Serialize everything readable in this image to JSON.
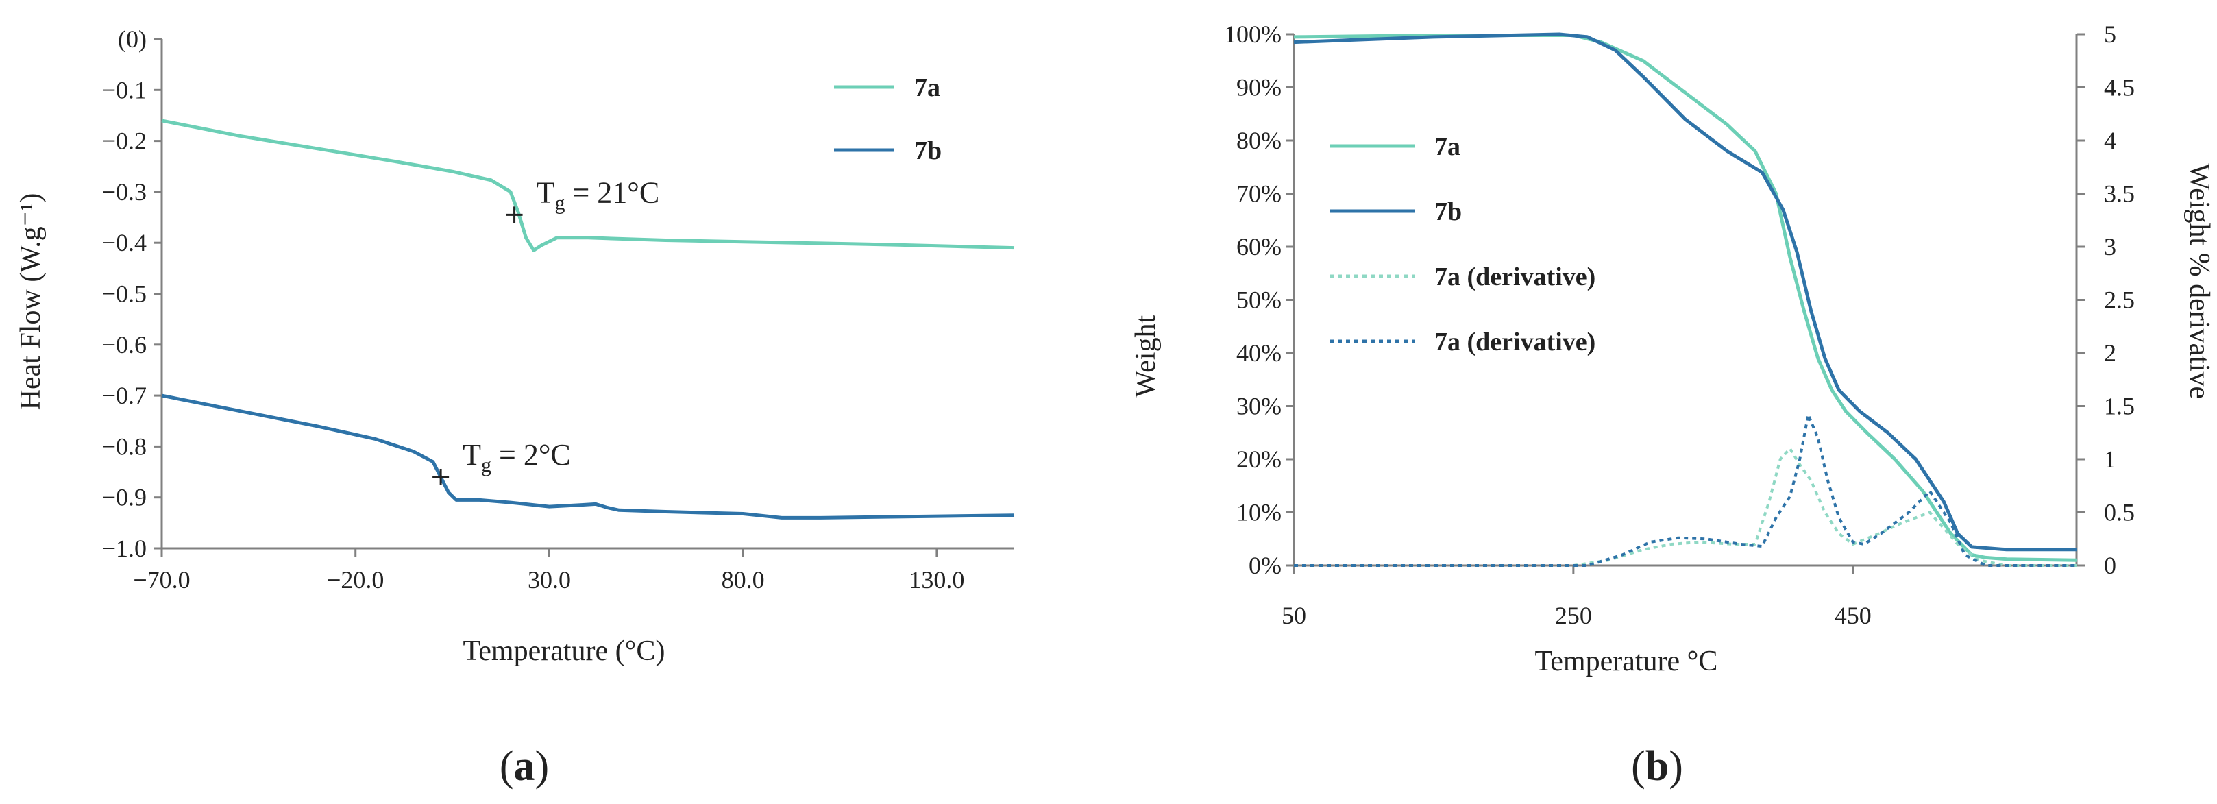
{
  "panels": [
    {
      "label_open": "(",
      "label_letter": "a",
      "label_close": ")"
    },
    {
      "label_open": "(",
      "label_letter": "b",
      "label_close": ")"
    }
  ],
  "chart_data": [
    {
      "type": "line",
      "xlabel": "Temperature (°C)",
      "ylabel": "Heat Flow (W.g⁻¹)",
      "xlim": [
        -70,
        150
      ],
      "ylim": [
        -1.0,
        0
      ],
      "xticks": [
        -70,
        -20,
        30,
        80,
        130
      ],
      "xtick_labels": [
        "−70.0",
        "−20.0",
        "30.0",
        "80.0",
        "130.0"
      ],
      "yticks": [
        0,
        -0.1,
        -0.2,
        -0.3,
        -0.4,
        -0.5,
        -0.6,
        -0.7,
        -0.8,
        -0.9,
        -1.0
      ],
      "ytick_labels": [
        "(0)",
        "−0.1",
        "−0.2",
        "−0.3",
        "−0.4",
        "−0.5",
        "−0.6",
        "−0.7",
        "−0.8",
        "−0.9",
        "−1.0"
      ],
      "grid": false,
      "legend_position": "top-right",
      "series": [
        {
          "name": "7a",
          "color": "#6ccfb6",
          "x": [
            -70,
            -50,
            -30,
            -10,
            5,
            15,
            20,
            22,
            24,
            26,
            28,
            32,
            40,
            60,
            80,
            100,
            120,
            150
          ],
          "y": [
            -0.16,
            -0.19,
            -0.215,
            -0.24,
            -0.26,
            -0.277,
            -0.3,
            -0.34,
            -0.39,
            -0.415,
            -0.405,
            -0.39,
            -0.39,
            -0.395,
            -0.398,
            -0.401,
            -0.404,
            -0.41
          ]
        },
        {
          "name": "7b",
          "color": "#2e73a8",
          "x": [
            -70,
            -50,
            -30,
            -15,
            -5,
            0,
            2,
            4,
            6,
            8,
            12,
            20,
            30,
            38,
            42,
            45,
            48,
            60,
            80,
            90,
            100,
            120,
            150
          ],
          "y": [
            -0.7,
            -0.73,
            -0.76,
            -0.785,
            -0.81,
            -0.83,
            -0.86,
            -0.89,
            -0.905,
            -0.905,
            -0.905,
            -0.91,
            -0.918,
            -0.915,
            -0.913,
            -0.92,
            -0.925,
            -0.928,
            -0.932,
            -0.94,
            -0.94,
            -0.938,
            -0.935
          ]
        }
      ],
      "annotations": [
        {
          "text_main": "T",
          "text_sub": "g",
          "text_rest": " = 21°C",
          "x": 21,
          "y": -0.345
        },
        {
          "text_main": "T",
          "text_sub": "g",
          "text_rest": " = 2°C",
          "x": 2,
          "y": -0.86
        }
      ]
    },
    {
      "type": "line",
      "xlabel": "Temperature °C",
      "ylabel": "Weight",
      "y2label": "Weight % derivative",
      "xlim": [
        50,
        610
      ],
      "ylim": [
        0,
        100
      ],
      "y2lim": [
        0,
        5
      ],
      "xticks": [
        50,
        250,
        450
      ],
      "xtick_labels": [
        "50",
        "250",
        "450"
      ],
      "yticks": [
        0,
        10,
        20,
        30,
        40,
        50,
        60,
        70,
        80,
        90,
        100
      ],
      "ytick_labels": [
        "0%",
        "10%",
        "20%",
        "30%",
        "40%",
        "50%",
        "60%",
        "70%",
        "80%",
        "90%",
        "100%"
      ],
      "y2ticks": [
        0,
        0.5,
        1,
        1.5,
        2,
        2.5,
        3,
        3.5,
        4,
        4.5,
        5
      ],
      "y2tick_labels": [
        "0",
        "0.5",
        "1",
        "1.5",
        "2",
        "2.5",
        "3",
        "3.5",
        "4",
        "4.5",
        "5"
      ],
      "grid": false,
      "legend_position": "left",
      "series": [
        {
          "name": "7a",
          "axis": "left",
          "style": "solid",
          "color": "#6ccfb6",
          "x": [
            50,
            150,
            250,
            270,
            300,
            330,
            360,
            380,
            395,
            405,
            415,
            425,
            435,
            445,
            460,
            480,
            500,
            520,
            535,
            545,
            560,
            610
          ],
          "y": [
            99.5,
            99.8,
            99.8,
            98.5,
            95,
            89,
            83,
            78,
            70,
            58,
            48,
            39,
            33,
            29,
            25,
            20,
            14,
            6,
            2,
            1.5,
            1.2,
            1
          ]
        },
        {
          "name": "7b",
          "axis": "left",
          "style": "solid",
          "color": "#2e73a8",
          "x": [
            50,
            150,
            240,
            260,
            280,
            300,
            330,
            360,
            385,
            400,
            410,
            420,
            430,
            440,
            455,
            475,
            495,
            515,
            525,
            535,
            560,
            610
          ],
          "y": [
            98.5,
            99.5,
            100,
            99.5,
            97,
            92,
            84,
            78,
            74,
            67,
            59,
            48,
            39,
            33,
            29,
            25,
            20,
            12,
            6,
            3.5,
            3,
            3
          ]
        },
        {
          "name": "7a (derivative)",
          "axis": "right",
          "style": "dotted",
          "color": "#8fd8c4",
          "x": [
            50,
            250,
            275,
            300,
            320,
            340,
            365,
            380,
            390,
            398,
            405,
            412,
            420,
            430,
            440,
            450,
            465,
            485,
            505,
            525,
            540,
            560,
            610
          ],
          "y": [
            0,
            0,
            0.05,
            0.15,
            0.2,
            0.22,
            0.2,
            0.2,
            0.6,
            1.0,
            1.1,
            0.95,
            0.8,
            0.5,
            0.3,
            0.2,
            0.28,
            0.4,
            0.5,
            0.2,
            0.05,
            0,
            0
          ]
        },
        {
          "name": "7a (derivative)",
          "axis": "right",
          "style": "dotted",
          "color": "#2e73a8",
          "x": [
            50,
            260,
            285,
            305,
            325,
            345,
            370,
            385,
            395,
            405,
            412,
            418,
            425,
            432,
            440,
            450,
            458,
            470,
            490,
            505,
            520,
            530,
            545,
            610
          ],
          "y": [
            0,
            0,
            0.1,
            0.22,
            0.26,
            0.25,
            0.2,
            0.18,
            0.45,
            0.65,
            1.0,
            1.42,
            1.2,
            0.8,
            0.45,
            0.22,
            0.2,
            0.3,
            0.5,
            0.7,
            0.4,
            0.1,
            0,
            0
          ]
        }
      ]
    }
  ]
}
